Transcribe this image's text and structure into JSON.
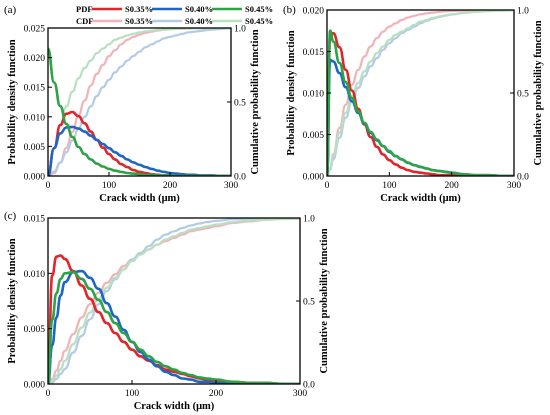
{
  "legend": {
    "pdf_label": "PDF",
    "cdf_label": "CDF",
    "entries": [
      "S0.35%",
      "S0.40%",
      "S0.45%"
    ]
  },
  "colors": {
    "S0.35%": "#e0262b",
    "S0.40%": "#1f66c4",
    "S0.45%": "#2ca345",
    "cdf_S0.35%": "#f2b3b8",
    "cdf_S0.40%": "#b3cbe6",
    "cdf_S0.45%": "#b8e0c0"
  },
  "chart_data": [
    {
      "panel": "(a)",
      "type": "line",
      "xlabel": "Crack width (μm)",
      "ylabel": "Probability density function",
      "y2label": "Cumulative probability function",
      "xlim": [
        0,
        300
      ],
      "ylim": [
        0,
        0.025
      ],
      "y2lim": [
        0,
        1.0
      ],
      "xticks": [
        0,
        100,
        200,
        300
      ],
      "yticks": [
        "0.000",
        "0.005",
        "0.010",
        "0.015",
        "0.020",
        "0.025"
      ],
      "y2ticks": [
        "0.0",
        "0.5",
        "1.0"
      ],
      "x": [
        0,
        10,
        20,
        30,
        40,
        50,
        60,
        70,
        80,
        90,
        100,
        110,
        120,
        130,
        140,
        150,
        160,
        170,
        180,
        190,
        200,
        210,
        220,
        230,
        240,
        250,
        260,
        270,
        280,
        290,
        300
      ],
      "series": [
        {
          "name": "S0.35%",
          "kind": "PDF",
          "values": [
            0.0,
            0.0047,
            0.0086,
            0.0105,
            0.0108,
            0.0101,
            0.0089,
            0.0075,
            0.0061,
            0.0048,
            0.0037,
            0.0028,
            0.002,
            0.0015,
            0.001,
            0.0007,
            0.0005,
            0.0003,
            0.0002,
            0.0001,
            0.0001,
            0.0,
            0.0,
            0.0,
            0.0,
            0.0,
            0.0,
            0.0,
            0.0,
            0.0,
            0.0
          ]
        },
        {
          "name": "S0.40%",
          "kind": "PDF",
          "values": [
            0.0,
            0.0047,
            0.0072,
            0.0082,
            0.0083,
            0.008,
            0.0075,
            0.0068,
            0.0061,
            0.0054,
            0.0047,
            0.004,
            0.0034,
            0.0028,
            0.0023,
            0.0019,
            0.0015,
            0.0012,
            0.0009,
            0.0007,
            0.0005,
            0.0004,
            0.0003,
            0.0002,
            0.0002,
            0.0001,
            0.0001,
            0.0001,
            0.0,
            0.0,
            0.0
          ]
        },
        {
          "name": "S0.45%",
          "kind": "PDF",
          "values": [
            0.0215,
            0.0158,
            0.0118,
            0.0088,
            0.0066,
            0.0049,
            0.0037,
            0.0028,
            0.0021,
            0.0016,
            0.0012,
            0.0009,
            0.0007,
            0.0005,
            0.0004,
            0.0003,
            0.0002,
            0.0002,
            0.0001,
            0.0001,
            0.0001,
            0.0,
            0.0,
            0.0,
            0.0,
            0.0,
            0.0,
            0.0,
            0.0,
            0.0,
            0.0
          ]
        },
        {
          "name": "S0.35%",
          "kind": "CDF",
          "values": [
            0.0,
            0.02,
            0.09,
            0.19,
            0.3,
            0.41,
            0.51,
            0.61,
            0.69,
            0.75,
            0.81,
            0.85,
            0.89,
            0.92,
            0.94,
            0.955,
            0.967,
            0.976,
            0.983,
            0.988,
            0.992,
            0.994,
            0.996,
            0.997,
            0.998,
            0.999,
            0.999,
            1.0,
            1.0,
            1.0,
            1.0
          ]
        },
        {
          "name": "S0.40%",
          "kind": "CDF",
          "values": [
            0.0,
            0.03,
            0.09,
            0.16,
            0.24,
            0.32,
            0.4,
            0.47,
            0.54,
            0.6,
            0.65,
            0.7,
            0.74,
            0.78,
            0.81,
            0.84,
            0.87,
            0.89,
            0.91,
            0.93,
            0.94,
            0.95,
            0.96,
            0.97,
            0.975,
            0.98,
            0.985,
            0.99,
            0.992,
            0.995,
            0.997
          ]
        },
        {
          "name": "S0.45%",
          "kind": "CDF",
          "values": [
            0.0,
            0.19,
            0.34,
            0.47,
            0.57,
            0.66,
            0.73,
            0.78,
            0.83,
            0.86,
            0.89,
            0.92,
            0.935,
            0.95,
            0.96,
            0.97,
            0.977,
            0.982,
            0.986,
            0.99,
            0.992,
            0.994,
            0.995,
            0.996,
            0.997,
            0.998,
            0.998,
            0.999,
            0.999,
            1.0,
            1.0
          ]
        }
      ]
    },
    {
      "panel": "(b)",
      "type": "line",
      "xlabel": "Crack width (μm)",
      "ylabel": "Probability density function",
      "y2label": "Cumulative probability function",
      "xlim": [
        0,
        300
      ],
      "ylim": [
        0,
        0.02
      ],
      "y2lim": [
        0,
        1.0
      ],
      "xticks": [
        0,
        100,
        200,
        300
      ],
      "yticks": [
        "0.000",
        "0.005",
        "0.010",
        "0.015",
        "0.020"
      ],
      "y2ticks": [
        "0.0",
        "0.5",
        "1.0"
      ],
      "x": [
        0,
        5,
        10,
        20,
        30,
        40,
        50,
        60,
        70,
        80,
        90,
        100,
        110,
        120,
        130,
        140,
        150,
        160,
        170,
        180,
        190,
        200,
        220,
        240,
        260,
        280,
        300
      ],
      "series": [
        {
          "name": "S0.35%",
          "kind": "PDF",
          "values": [
            0.0,
            0.0168,
            0.0172,
            0.0155,
            0.0128,
            0.0103,
            0.0081,
            0.0062,
            0.0047,
            0.0035,
            0.0026,
            0.0019,
            0.0014,
            0.001,
            0.0007,
            0.0005,
            0.0004,
            0.0003,
            0.0002,
            0.0001,
            0.0001,
            0.0001,
            0.0,
            0.0,
            0.0,
            0.0,
            0.0
          ]
        },
        {
          "name": "S0.40%",
          "kind": "PDF",
          "values": [
            0.0,
            0.014,
            0.0138,
            0.0124,
            0.0107,
            0.009,
            0.0076,
            0.0063,
            0.0052,
            0.0043,
            0.0036,
            0.0029,
            0.0024,
            0.002,
            0.0016,
            0.0013,
            0.0011,
            0.0009,
            0.0007,
            0.0006,
            0.0005,
            0.0004,
            0.0002,
            0.0001,
            0.0001,
            0.0,
            0.0
          ]
        },
        {
          "name": "S0.45%",
          "kind": "PDF",
          "values": [
            0.0,
            0.0175,
            0.0162,
            0.0136,
            0.0113,
            0.0094,
            0.0078,
            0.0064,
            0.0053,
            0.0044,
            0.0036,
            0.003,
            0.0024,
            0.002,
            0.0016,
            0.0013,
            0.0011,
            0.0009,
            0.0007,
            0.0006,
            0.0005,
            0.0004,
            0.0002,
            0.0001,
            0.0001,
            0.0,
            0.0
          ]
        },
        {
          "name": "S0.35%",
          "kind": "CDF",
          "values": [
            0.0,
            0.05,
            0.13,
            0.29,
            0.43,
            0.55,
            0.64,
            0.72,
            0.78,
            0.83,
            0.87,
            0.9,
            0.92,
            0.94,
            0.955,
            0.965,
            0.974,
            0.98,
            0.985,
            0.989,
            0.992,
            0.994,
            0.997,
            0.998,
            0.999,
            1.0,
            1.0
          ]
        },
        {
          "name": "S0.40%",
          "kind": "CDF",
          "values": [
            0.0,
            0.04,
            0.1,
            0.23,
            0.35,
            0.45,
            0.53,
            0.6,
            0.66,
            0.71,
            0.76,
            0.8,
            0.83,
            0.86,
            0.88,
            0.9,
            0.92,
            0.935,
            0.948,
            0.958,
            0.966,
            0.973,
            0.983,
            0.99,
            0.994,
            0.997,
            0.998
          ]
        },
        {
          "name": "S0.45%",
          "kind": "CDF",
          "values": [
            0.0,
            0.05,
            0.12,
            0.26,
            0.38,
            0.48,
            0.56,
            0.63,
            0.69,
            0.74,
            0.78,
            0.82,
            0.85,
            0.87,
            0.89,
            0.91,
            0.93,
            0.94,
            0.952,
            0.961,
            0.968,
            0.974,
            0.983,
            0.99,
            0.994,
            0.996,
            0.998
          ]
        }
      ]
    },
    {
      "panel": "(c)",
      "type": "line",
      "xlabel": "Crack width (μm)",
      "ylabel": "Probability density function",
      "y2label": "Cumulative probability function",
      "xlim": [
        0,
        300
      ],
      "ylim": [
        0,
        0.015
      ],
      "y2lim": [
        0,
        1.0
      ],
      "xticks": [
        0,
        100,
        200,
        300
      ],
      "yticks": [
        "0.000",
        "0.005",
        "0.010",
        "0.015"
      ],
      "y2ticks": [
        "0.0",
        "0.5",
        "1.0"
      ],
      "x": [
        0,
        5,
        10,
        15,
        20,
        30,
        40,
        50,
        60,
        70,
        80,
        90,
        100,
        110,
        120,
        130,
        140,
        150,
        160,
        170,
        180,
        190,
        200,
        220,
        240,
        260,
        280,
        300
      ],
      "series": [
        {
          "name": "S0.35%",
          "kind": "PDF",
          "values": [
            0.0,
            0.0098,
            0.0115,
            0.0116,
            0.0113,
            0.0102,
            0.0089,
            0.0077,
            0.0065,
            0.0055,
            0.0046,
            0.0038,
            0.0031,
            0.0025,
            0.0021,
            0.0017,
            0.0013,
            0.0011,
            0.0009,
            0.0007,
            0.0005,
            0.0004,
            0.0003,
            0.0002,
            0.0001,
            0.0001,
            0.0,
            0.0
          ]
        },
        {
          "name": "S0.40%",
          "kind": "PDF",
          "values": [
            0.0,
            0.0035,
            0.006,
            0.008,
            0.0092,
            0.0101,
            0.0102,
            0.0096,
            0.0086,
            0.0073,
            0.0061,
            0.0049,
            0.0038,
            0.0029,
            0.0022,
            0.0016,
            0.0011,
            0.0008,
            0.0005,
            0.0004,
            0.0002,
            0.0002,
            0.0001,
            0.0,
            0.0,
            0.0,
            0.0,
            0.0
          ]
        },
        {
          "name": "S0.45%",
          "kind": "PDF",
          "values": [
            0.0,
            0.0058,
            0.0082,
            0.0095,
            0.01,
            0.0101,
            0.0095,
            0.0086,
            0.0076,
            0.0065,
            0.0055,
            0.0046,
            0.0038,
            0.0031,
            0.0025,
            0.002,
            0.0016,
            0.0013,
            0.001,
            0.0008,
            0.0006,
            0.0005,
            0.0004,
            0.0002,
            0.0001,
            0.0001,
            0.0,
            0.0
          ]
        },
        {
          "name": "S0.35%",
          "kind": "CDF",
          "values": [
            0.0,
            0.03,
            0.08,
            0.14,
            0.2,
            0.3,
            0.4,
            0.48,
            0.55,
            0.61,
            0.66,
            0.71,
            0.75,
            0.78,
            0.81,
            0.84,
            0.86,
            0.88,
            0.9,
            0.92,
            0.93,
            0.94,
            0.95,
            0.97,
            0.98,
            0.99,
            0.995,
            0.997
          ]
        },
        {
          "name": "S0.40%",
          "kind": "CDF",
          "values": [
            0.0,
            0.01,
            0.03,
            0.06,
            0.09,
            0.19,
            0.29,
            0.39,
            0.48,
            0.56,
            0.63,
            0.69,
            0.75,
            0.79,
            0.83,
            0.87,
            0.9,
            0.92,
            0.94,
            0.955,
            0.967,
            0.976,
            0.983,
            0.992,
            0.996,
            0.998,
            0.999,
            1.0
          ]
        },
        {
          "name": "S0.45%",
          "kind": "CDF",
          "values": [
            0.0,
            0.02,
            0.05,
            0.09,
            0.14,
            0.24,
            0.34,
            0.43,
            0.51,
            0.58,
            0.64,
            0.69,
            0.74,
            0.78,
            0.81,
            0.84,
            0.87,
            0.89,
            0.91,
            0.93,
            0.94,
            0.95,
            0.96,
            0.975,
            0.985,
            0.99,
            0.994,
            0.996
          ]
        }
      ]
    }
  ]
}
